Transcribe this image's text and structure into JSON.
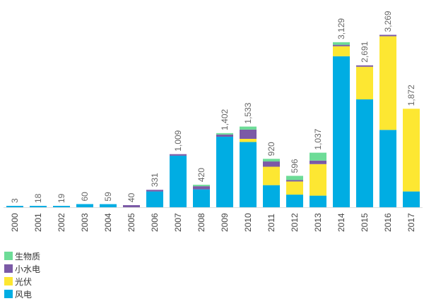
{
  "chart_data": {
    "type": "stacked-bar",
    "categories": [
      "2000",
      "2001",
      "2002",
      "2003",
      "2004",
      "2005",
      "2006",
      "2007",
      "2008",
      "2009",
      "2010",
      "2011",
      "2012",
      "2013",
      "2014",
      "2015",
      "2016",
      "2017"
    ],
    "totals": [
      "3",
      "18",
      "19",
      "60",
      "59",
      "40",
      "331",
      "1,009",
      "420",
      "1,402",
      "1,533",
      "920",
      "596",
      "1,037",
      "3,129",
      "2,691",
      "3,269",
      "1,872"
    ],
    "series": [
      {
        "name": "风电",
        "color": "#00ade3",
        "values": [
          3,
          18,
          19,
          60,
          59,
          0,
          300,
          980,
          340,
          1340,
          1240,
          420,
          240,
          220,
          2870,
          2050,
          1470,
          300
        ]
      },
      {
        "name": "光伏",
        "color": "#fde732",
        "values": [
          0,
          0,
          0,
          0,
          0,
          0,
          0,
          0,
          0,
          0,
          60,
          350,
          250,
          600,
          190,
          620,
          1780,
          1572
        ]
      },
      {
        "name": "小水电",
        "color": "#7b5aa6",
        "values": [
          0,
          0,
          0,
          0,
          0,
          40,
          31,
          29,
          60,
          42,
          175,
          100,
          26,
          67,
          19,
          21,
          19,
          0
        ]
      },
      {
        "name": "生物质",
        "color": "#6ddc97",
        "values": [
          0,
          0,
          0,
          0,
          0,
          0,
          0,
          0,
          20,
          20,
          58,
          50,
          80,
          150,
          50,
          0,
          0,
          0
        ]
      }
    ],
    "legend_order": [
      "生物质",
      "小水电",
      "光伏",
      "风电"
    ],
    "ylim": [
      0,
      3269
    ],
    "xlabel": "",
    "ylabel": "",
    "grid": false,
    "legend_position": "bottom-left"
  }
}
